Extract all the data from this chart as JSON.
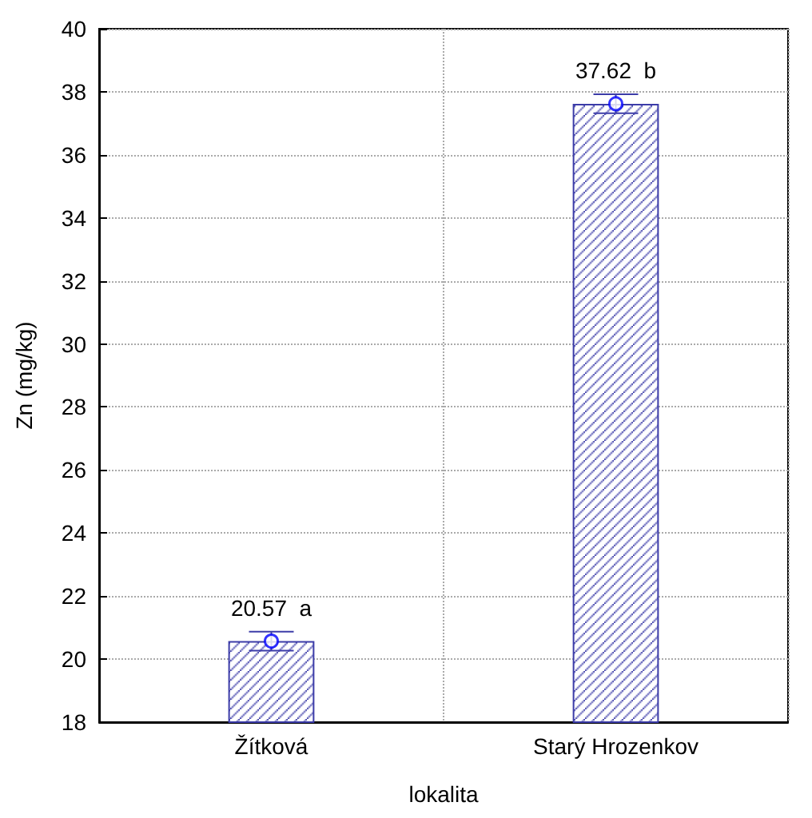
{
  "chart_data": {
    "type": "bar",
    "xlabel": "lokalita",
    "ylabel": "Zn (mg/kg)",
    "categories": [
      "Žítková",
      "Starý Hrozenkov"
    ],
    "series": [
      {
        "color": "#3c3ca8",
        "values": [
          20.57,
          37.62
        ],
        "errors": [
          0.3,
          0.3
        ],
        "value_labels": [
          "20.57  a",
          "37.62  b"
        ]
      },
      {
        "type": "scatter",
        "color": "#0000ff",
        "x": [
          "Žítková",
          "Starý Hrozenkov"
        ],
        "values": [
          20.57,
          37.62
        ]
      }
    ],
    "ylim": [
      18,
      40
    ],
    "yticks": [
      18,
      20,
      22,
      24,
      26,
      28,
      30,
      32,
      34,
      36,
      38,
      40
    ],
    "grid": true,
    "marker": "circle"
  }
}
